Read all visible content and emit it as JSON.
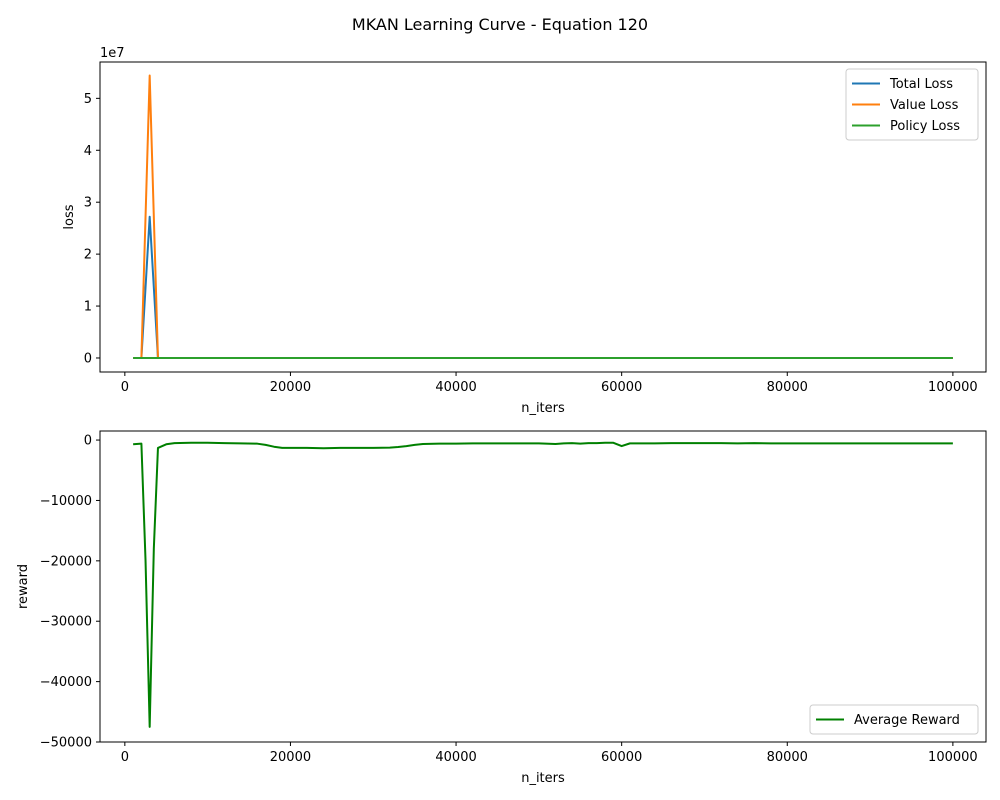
{
  "figure": {
    "title": "MKAN Learning Curve - Equation 120"
  },
  "chart_data": [
    {
      "type": "line",
      "xlabel": "n_iters",
      "ylabel": "loss",
      "offset_label": "1e7",
      "xlim": [
        -3000,
        104000
      ],
      "ylim": [
        -2700000,
        57000000
      ],
      "x_ticks": [
        0,
        20000,
        40000,
        60000,
        80000,
        100000
      ],
      "y_ticks": [
        0,
        10000000,
        20000000,
        30000000,
        40000000,
        50000000
      ],
      "y_tick_labels": [
        "0",
        "1",
        "2",
        "3",
        "4",
        "5"
      ],
      "legend_placement": "upper-right",
      "series": [
        {
          "name": "Total Loss",
          "color": "#1f77b4",
          "x": [
            1000,
            2000,
            3000,
            4000,
            5000,
            10000,
            20000,
            30000,
            40000,
            50000,
            60000,
            70000,
            80000,
            90000,
            100000
          ],
          "y": [
            5000,
            5000,
            27200000,
            5000,
            5000,
            5000,
            5000,
            5000,
            5000,
            5000,
            5000,
            5000,
            5000,
            5000,
            5000
          ]
        },
        {
          "name": "Value Loss",
          "color": "#ff7f0e",
          "x": [
            1000,
            2000,
            3000,
            4000,
            5000,
            10000,
            20000,
            30000,
            40000,
            50000,
            60000,
            70000,
            80000,
            90000,
            100000
          ],
          "y": [
            5000,
            5000,
            54400000,
            5000,
            5000,
            5000,
            5000,
            5000,
            5000,
            5000,
            5000,
            5000,
            5000,
            5000,
            5000
          ]
        },
        {
          "name": "Policy Loss",
          "color": "#2ca02c",
          "x": [
            1000,
            2000,
            3000,
            4000,
            5000,
            10000,
            20000,
            30000,
            40000,
            50000,
            60000,
            70000,
            80000,
            90000,
            100000
          ],
          "y": [
            0,
            0,
            0,
            0,
            0,
            0,
            0,
            0,
            0,
            0,
            0,
            0,
            0,
            0,
            0
          ]
        }
      ]
    },
    {
      "type": "line",
      "xlabel": "n_iters",
      "ylabel": "reward",
      "xlim": [
        -3000,
        104000
      ],
      "ylim": [
        -50000,
        1500
      ],
      "x_ticks": [
        0,
        20000,
        40000,
        60000,
        80000,
        100000
      ],
      "y_ticks": [
        0,
        -10000,
        -20000,
        -30000,
        -40000,
        -50000
      ],
      "y_tick_labels": [
        "0",
        "−10000",
        "−20000",
        "−30000",
        "−40000",
        "−50000"
      ],
      "legend_placement": "lower-right",
      "series": [
        {
          "name": "Average Reward",
          "color": "#008000",
          "x": [
            1000,
            2000,
            2500,
            3000,
            3500,
            4000,
            5000,
            6000,
            8000,
            10000,
            12000,
            14000,
            16000,
            17000,
            18000,
            19000,
            20000,
            22000,
            24000,
            26000,
            28000,
            30000,
            32000,
            33000,
            34000,
            35000,
            36000,
            38000,
            40000,
            42000,
            44000,
            46000,
            48000,
            50000,
            52000,
            53000,
            54000,
            55000,
            56000,
            57000,
            58000,
            59000,
            60000,
            61000,
            62000,
            64000,
            66000,
            68000,
            70000,
            72000,
            74000,
            76000,
            78000,
            80000,
            82000,
            84000,
            86000,
            88000,
            90000,
            92000,
            94000,
            96000,
            98000,
            100000
          ],
          "y": [
            -700,
            -600,
            -20000,
            -47500,
            -18000,
            -1300,
            -700,
            -500,
            -450,
            -450,
            -500,
            -550,
            -600,
            -800,
            -1100,
            -1300,
            -1300,
            -1300,
            -1350,
            -1300,
            -1300,
            -1300,
            -1250,
            -1150,
            -1000,
            -800,
            -650,
            -600,
            -600,
            -550,
            -550,
            -550,
            -550,
            -550,
            -650,
            -550,
            -500,
            -600,
            -500,
            -500,
            -450,
            -450,
            -1000,
            -550,
            -550,
            -550,
            -500,
            -500,
            -500,
            -500,
            -550,
            -500,
            -550,
            -550,
            -550,
            -550,
            -550,
            -550,
            -550,
            -550,
            -550,
            -550,
            -550,
            -550
          ]
        }
      ]
    }
  ]
}
